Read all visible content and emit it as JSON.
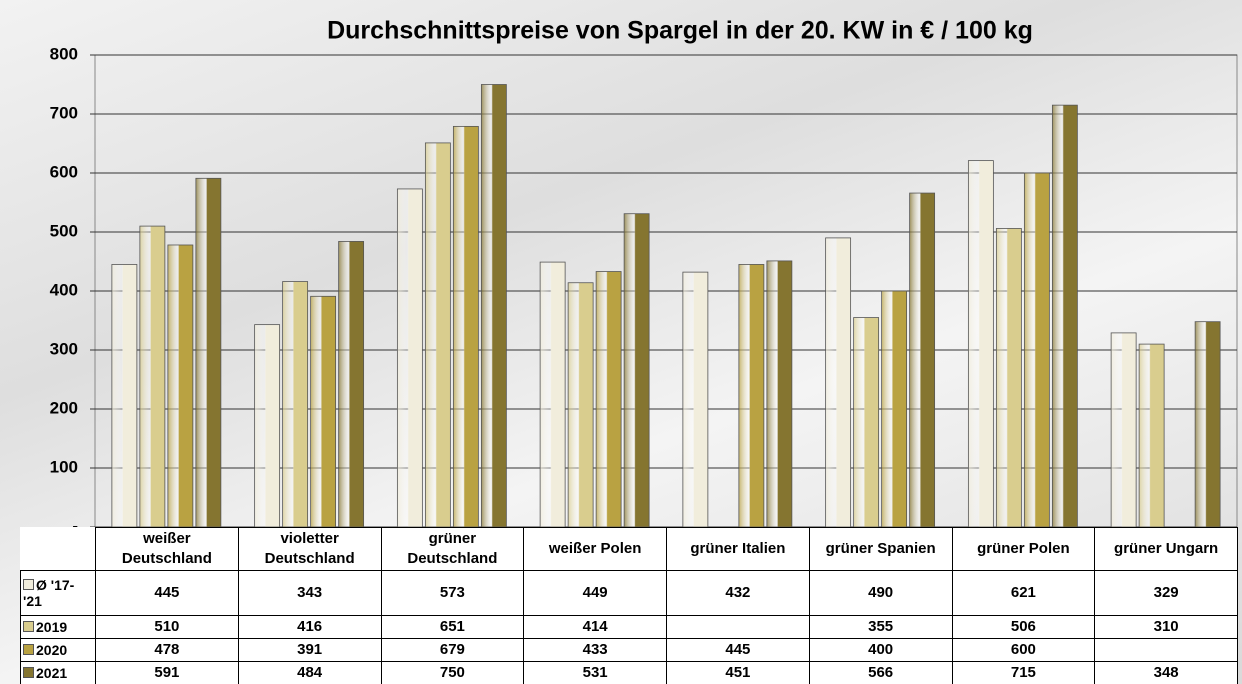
{
  "chart_data": {
    "type": "bar",
    "title": "Durchschnittspreise von Spargel in der 20. KW in € / 100 kg",
    "categories": [
      "weißer Deutschland",
      "violetter Deutschland",
      "grüner Deutschland",
      "weißer Polen",
      "grüner Italien",
      "grüner Spanien",
      "grüner Polen",
      "grüner Ungarn"
    ],
    "series": [
      {
        "name": "Ø '17-'21",
        "color": "#f1eddc",
        "values": [
          445,
          343,
          573,
          449,
          432,
          490,
          621,
          329
        ]
      },
      {
        "name": "2019",
        "color": "#d9cd8e",
        "values": [
          510,
          416,
          651,
          414,
          null,
          355,
          506,
          310
        ]
      },
      {
        "name": "2020",
        "color": "#b9a242",
        "values": [
          478,
          391,
          679,
          433,
          445,
          400,
          600,
          null
        ]
      },
      {
        "name": "2021",
        "color": "#857530",
        "values": [
          591,
          484,
          750,
          531,
          451,
          566,
          715,
          348
        ]
      }
    ],
    "ylim": [
      0,
      800
    ],
    "yticks": [
      {
        "value": 0,
        "label": "-"
      },
      100,
      200,
      300,
      400,
      500,
      600,
      700,
      800
    ],
    "grid": true
  }
}
